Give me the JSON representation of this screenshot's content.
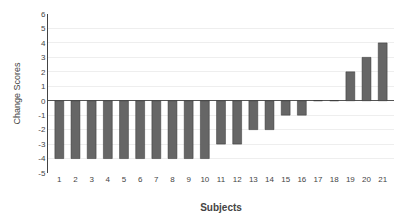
{
  "chart_data": {
    "type": "bar",
    "xlabel": "Subjects",
    "ylabel": "Change Scores",
    "categories": [
      "1",
      "2",
      "3",
      "4",
      "5",
      "6",
      "7",
      "8",
      "9",
      "10",
      "11",
      "12",
      "13",
      "14",
      "15",
      "16",
      "17",
      "18",
      "19",
      "20",
      "21"
    ],
    "values": [
      -4,
      -4,
      -4,
      -4,
      -4,
      -4,
      -4,
      -4,
      -4,
      -4,
      -3,
      -3,
      -2,
      -2,
      -1,
      -1,
      0,
      0,
      2,
      3,
      4
    ],
    "color": "#666666",
    "ylim": [
      -5,
      6
    ],
    "yticks": [
      -5,
      -4,
      -3,
      -2,
      -1,
      0,
      1,
      2,
      3,
      4,
      5,
      6
    ],
    "grid": true
  }
}
